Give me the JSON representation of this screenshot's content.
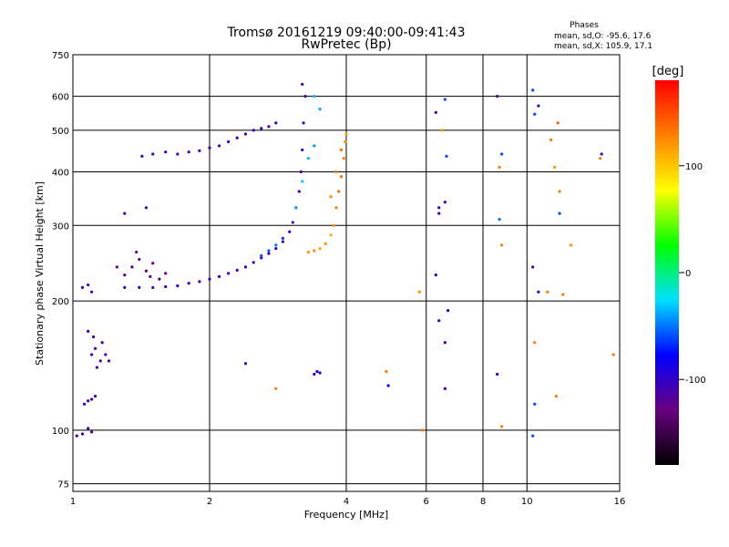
{
  "chart_data": {
    "type": "scatter",
    "title": "Tromsø 20161219 09:40:00-09:41:43",
    "subtitle": "RwPretec (Bp)",
    "phase_header": "Phases",
    "phase_stats_O": "mean, sd,O: -95.6, 17.6",
    "phase_stats_X": "mean, sd,X: 105.9, 17.1",
    "xlabel": "Frequency [MHz]",
    "ylabel": "Stationary phase Virtual Height [km]",
    "x_scale": "log",
    "y_scale": "log",
    "xlim": [
      1,
      16
    ],
    "ylim": [
      72,
      750
    ],
    "x_ticks": [
      {
        "value": 1,
        "label": "1"
      },
      {
        "value": 2,
        "label": "2"
      },
      {
        "value": 4,
        "label": "4"
      },
      {
        "value": 6,
        "label": "6"
      },
      {
        "value": 8,
        "label": "8"
      },
      {
        "value": 10,
        "label": "10"
      },
      {
        "value": 16,
        "label": "16"
      }
    ],
    "y_ticks": [
      {
        "value": 75,
        "label": "75"
      },
      {
        "value": 100,
        "label": "100"
      },
      {
        "value": 200,
        "label": "200"
      },
      {
        "value": 300,
        "label": "300"
      },
      {
        "value": 400,
        "label": "400"
      },
      {
        "value": 500,
        "label": "500"
      },
      {
        "value": 600,
        "label": "600"
      },
      {
        "value": 750,
        "label": "750"
      }
    ],
    "grid": true,
    "colorbar": {
      "label": "[deg]",
      "range": [
        -180,
        180
      ],
      "ticks": [
        {
          "value": 100,
          "label": "100"
        },
        {
          "value": 0,
          "label": "0"
        },
        {
          "value": -100,
          "label": "-100"
        }
      ],
      "colors": [
        "#000000",
        "#6a0080",
        "#0000ff",
        "#00e0ff",
        "#00ff00",
        "#ffff00",
        "#ff8000",
        "#ff0000"
      ]
    },
    "points": [
      [
        1.02,
        97,
        -110
      ],
      [
        1.05,
        98,
        -105
      ],
      [
        1.08,
        101,
        -100
      ],
      [
        1.1,
        99,
        -115
      ],
      [
        1.06,
        115,
        -110
      ],
      [
        1.08,
        117,
        -105
      ],
      [
        1.1,
        118,
        -115
      ],
      [
        1.12,
        120,
        -100
      ],
      [
        1.1,
        150,
        -110
      ],
      [
        1.12,
        155,
        -120
      ],
      [
        1.15,
        145,
        -115
      ],
      [
        1.18,
        150,
        -105
      ],
      [
        1.2,
        145,
        -120
      ],
      [
        1.08,
        170,
        -100
      ],
      [
        1.11,
        165,
        -110
      ],
      [
        1.13,
        140,
        -115
      ],
      [
        1.16,
        160,
        -105
      ],
      [
        1.05,
        215,
        -110
      ],
      [
        1.08,
        218,
        -100
      ],
      [
        1.1,
        210,
        -115
      ],
      [
        1.3,
        215,
        -100
      ],
      [
        1.4,
        215,
        -95
      ],
      [
        1.5,
        215,
        -110
      ],
      [
        1.6,
        216,
        -105
      ],
      [
        1.7,
        217,
        -100
      ],
      [
        1.8,
        220,
        -95
      ],
      [
        1.9,
        222,
        -110
      ],
      [
        2.0,
        225,
        -100
      ],
      [
        2.1,
        228,
        -105
      ],
      [
        2.2,
        232,
        -100
      ],
      [
        2.3,
        236,
        -110
      ],
      [
        2.4,
        240,
        -95
      ],
      [
        2.5,
        246,
        -105
      ],
      [
        2.6,
        252,
        -100
      ],
      [
        2.7,
        258,
        -110
      ],
      [
        2.8,
        265,
        -95
      ],
      [
        2.9,
        275,
        -105
      ],
      [
        3.0,
        290,
        -100
      ],
      [
        3.05,
        305,
        -110
      ],
      [
        3.1,
        330,
        -100
      ],
      [
        3.15,
        360,
        -105
      ],
      [
        3.18,
        400,
        -110
      ],
      [
        3.2,
        450,
        -100
      ],
      [
        3.22,
        520,
        -105
      ],
      [
        3.25,
        600,
        -110
      ],
      [
        3.2,
        640,
        -100
      ],
      [
        1.3,
        230,
        -130
      ],
      [
        1.35,
        240,
        -140
      ],
      [
        1.4,
        250,
        -120
      ],
      [
        1.45,
        235,
        -135
      ],
      [
        1.5,
        245,
        -125
      ],
      [
        1.55,
        225,
        -140
      ],
      [
        1.25,
        240,
        -120
      ],
      [
        1.38,
        260,
        -130
      ],
      [
        1.48,
        228,
        -125
      ],
      [
        1.6,
        232,
        -130
      ],
      [
        1.3,
        320,
        -110
      ],
      [
        1.45,
        330,
        -105
      ],
      [
        1.42,
        435,
        -110
      ],
      [
        1.5,
        440,
        -100
      ],
      [
        1.6,
        445,
        -105
      ],
      [
        1.7,
        440,
        -110
      ],
      [
        1.8,
        445,
        -100
      ],
      [
        1.9,
        448,
        -105
      ],
      [
        2.0,
        455,
        -110
      ],
      [
        2.1,
        460,
        -100
      ],
      [
        2.2,
        470,
        -105
      ],
      [
        2.3,
        480,
        -100
      ],
      [
        2.4,
        490,
        -110
      ],
      [
        2.5,
        500,
        -100
      ],
      [
        2.6,
        505,
        -105
      ],
      [
        2.7,
        510,
        -110
      ],
      [
        2.8,
        520,
        -100
      ],
      [
        2.6,
        255,
        -60
      ],
      [
        2.7,
        262,
        -55
      ],
      [
        2.8,
        270,
        -50
      ],
      [
        2.9,
        280,
        -65
      ],
      [
        3.1,
        330,
        -40
      ],
      [
        3.2,
        380,
        -30
      ],
      [
        3.3,
        430,
        -35
      ],
      [
        3.4,
        460,
        -45
      ],
      [
        3.5,
        560,
        -40
      ],
      [
        3.4,
        600,
        -35
      ],
      [
        3.3,
        260,
        120
      ],
      [
        3.4,
        262,
        125
      ],
      [
        3.5,
        265,
        115
      ],
      [
        3.6,
        272,
        120
      ],
      [
        3.7,
        285,
        110
      ],
      [
        3.75,
        300,
        125
      ],
      [
        3.8,
        330,
        130
      ],
      [
        3.85,
        360,
        135
      ],
      [
        3.9,
        390,
        140
      ],
      [
        3.95,
        430,
        130
      ],
      [
        3.98,
        470,
        125
      ],
      [
        4.0,
        490,
        120
      ],
      [
        3.7,
        350,
        125
      ],
      [
        3.8,
        400,
        130
      ],
      [
        3.9,
        450,
        135
      ],
      [
        3.4,
        135,
        -90
      ],
      [
        3.45,
        137,
        -85
      ],
      [
        3.5,
        136,
        -95
      ],
      [
        4.9,
        137,
        130
      ],
      [
        4.95,
        127,
        -80
      ],
      [
        2.8,
        125,
        130
      ],
      [
        2.4,
        143,
        -110
      ],
      [
        6.3,
        550,
        -110
      ],
      [
        6.4,
        330,
        -100
      ],
      [
        6.5,
        500,
        120
      ],
      [
        6.6,
        590,
        -60
      ],
      [
        6.65,
        435,
        -60
      ],
      [
        6.6,
        340,
        -110
      ],
      [
        6.3,
        230,
        -100
      ],
      [
        6.4,
        180,
        -105
      ],
      [
        6.6,
        160,
        -110
      ],
      [
        6.7,
        190,
        -100
      ],
      [
        6.6,
        125,
        -105
      ],
      [
        5.9,
        100,
        130
      ],
      [
        5.8,
        210,
        120
      ],
      [
        6.4,
        320,
        -100
      ],
      [
        8.6,
        600,
        -110
      ],
      [
        8.7,
        410,
        130
      ],
      [
        8.8,
        440,
        -60
      ],
      [
        8.7,
        310,
        -50
      ],
      [
        8.8,
        270,
        130
      ],
      [
        8.6,
        135,
        -110
      ],
      [
        8.8,
        102,
        130
      ],
      [
        10.3,
        620,
        -60
      ],
      [
        10.4,
        545,
        -60
      ],
      [
        10.6,
        570,
        -110
      ],
      [
        10.6,
        210,
        -100
      ],
      [
        10.4,
        160,
        130
      ],
      [
        10.4,
        115,
        -60
      ],
      [
        10.3,
        97,
        -60
      ],
      [
        10.3,
        240,
        -110
      ],
      [
        11.7,
        520,
        140
      ],
      [
        11.5,
        410,
        120
      ],
      [
        11.8,
        360,
        130
      ],
      [
        11.8,
        320,
        -60
      ],
      [
        11.3,
        475,
        130
      ],
      [
        11.1,
        210,
        130
      ],
      [
        12.5,
        270,
        120
      ],
      [
        11.6,
        120,
        130
      ],
      [
        14.6,
        440,
        -110
      ],
      [
        14.5,
        430,
        130
      ],
      [
        15.5,
        150,
        130
      ],
      [
        12.0,
        207,
        130
      ]
    ]
  }
}
